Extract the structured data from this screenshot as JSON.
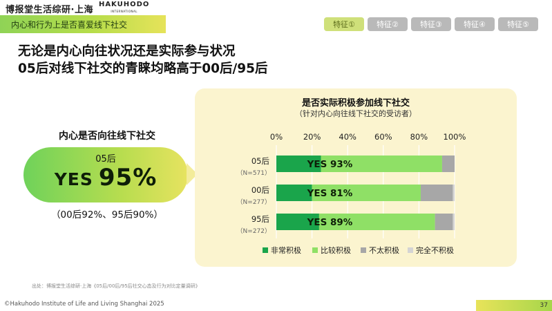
{
  "brand": {
    "name_cn": "博报堂生活综研·上海",
    "logo": "HAKUHODO",
    "logo_sub": "INTERNATIONAL"
  },
  "banner": {
    "label": "内心和行为上是否喜爱线下社交"
  },
  "tabs": [
    {
      "label": "特征①",
      "active": true
    },
    {
      "label": "特征②",
      "active": false
    },
    {
      "label": "特征③",
      "active": false
    },
    {
      "label": "特征④",
      "active": false
    },
    {
      "label": "特征⑤",
      "active": false
    }
  ],
  "headline": {
    "line1": "无论是内心向往状况还是实际参与状况",
    "line2": "05后对线下社交的青睐均略高于00后/95后"
  },
  "left_panel": {
    "title": "内心是否向往线下社交",
    "group": "05后",
    "yes_label": "YES",
    "percent": "95%",
    "note": "（00后92%、95后90%）"
  },
  "chart_data": {
    "type": "bar",
    "orientation": "horizontal",
    "stacked": true,
    "title": "是否实际积极参加线下社交",
    "subtitle": "（针对内心向往线下社交的受访者）",
    "categories": [
      {
        "label": "05后",
        "n": "（N=571）"
      },
      {
        "label": "00后",
        "n": "（N=277）"
      },
      {
        "label": "95后",
        "n": "（N=272）"
      }
    ],
    "xlim": [
      0,
      100
    ],
    "xticks": [
      "0%",
      "20%",
      "40%",
      "60%",
      "80%",
      "100%"
    ],
    "grid": true,
    "series": [
      {
        "name": "非常积极",
        "color": "#1aa54b",
        "values": [
          25,
          20,
          24
        ]
      },
      {
        "name": "比较积极",
        "color": "#8fe066",
        "values": [
          68,
          61,
          65
        ]
      },
      {
        "name": "不太积极",
        "color": "#a7a7a7",
        "values": [
          7,
          18,
          10
        ]
      },
      {
        "name": "完全不积极",
        "color": "#d4d4d4",
        "values": [
          0,
          1,
          1
        ]
      }
    ],
    "data_labels": [
      "YES 93%",
      "YES 81%",
      "YES 89%"
    ],
    "legend_position": "bottom"
  },
  "source": "出处：博报堂生活综研·上海《05后/00后/95后社交心态及行为对比定量调研》",
  "footer": {
    "copyright": "©Hakuhodo Institute of Life and Living Shanghai 2025",
    "page": "37"
  }
}
